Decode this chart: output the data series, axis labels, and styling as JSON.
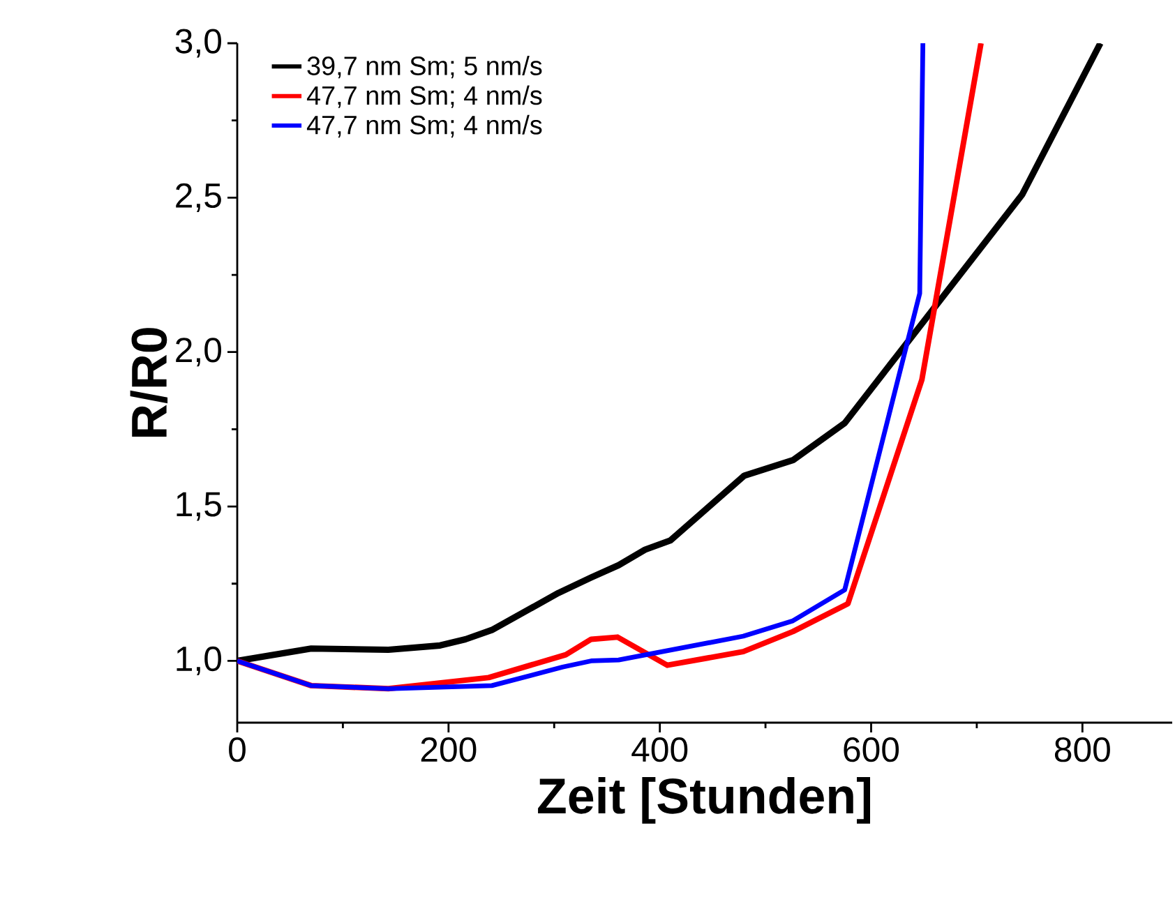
{
  "chart_data": {
    "type": "line",
    "xlabel": "Zeit [Stunden]",
    "ylabel": "R/R0",
    "xlim": [
      0,
      885
    ],
    "xticks": [
      0,
      200,
      400,
      600,
      800
    ],
    "ylim": [
      0.8,
      3.0
    ],
    "yticks": [
      {
        "value": 1.0,
        "label": "1,0"
      },
      {
        "value": 1.5,
        "label": "1,5"
      },
      {
        "value": 2.0,
        "label": "2,0"
      },
      {
        "value": 2.5,
        "label": "2,5"
      },
      {
        "value": 3.0,
        "label": "3,0"
      }
    ],
    "legend": "top left",
    "line_style": "solid",
    "marker": "none",
    "grid": false,
    "series": [
      {
        "name": "39,7 nm Sm; 5 nm/s",
        "color": "#000000",
        "x": [
          0,
          70,
          143,
          192,
          216,
          241,
          304,
          335,
          361,
          386,
          410,
          480,
          526,
          575,
          743,
          817
        ],
        "values": [
          1.0,
          1.04,
          1.036,
          1.05,
          1.07,
          1.1,
          1.22,
          1.27,
          1.31,
          1.36,
          1.39,
          1.6,
          1.65,
          1.77,
          2.51,
          3.0
        ]
      },
      {
        "name": "47,7 nm Sm; 4 nm/s",
        "color": "#ff0000",
        "x": [
          0,
          70,
          143,
          238,
          311,
          335,
          360,
          407,
          479,
          526,
          578,
          648,
          704
        ],
        "values": [
          1.0,
          0.92,
          0.91,
          0.946,
          1.02,
          1.07,
          1.077,
          0.986,
          1.03,
          1.095,
          1.185,
          1.91,
          3.0
        ]
      },
      {
        "name": "47,7 nm Sm; 4 nm/s",
        "color": "#0000ff",
        "x": [
          0,
          70,
          143,
          241,
          308,
          335,
          361,
          479,
          526,
          575,
          646,
          649
        ],
        "values": [
          1.0,
          0.92,
          0.91,
          0.92,
          0.98,
          1.0,
          1.003,
          1.08,
          1.13,
          1.23,
          2.19,
          3.0
        ]
      }
    ]
  }
}
